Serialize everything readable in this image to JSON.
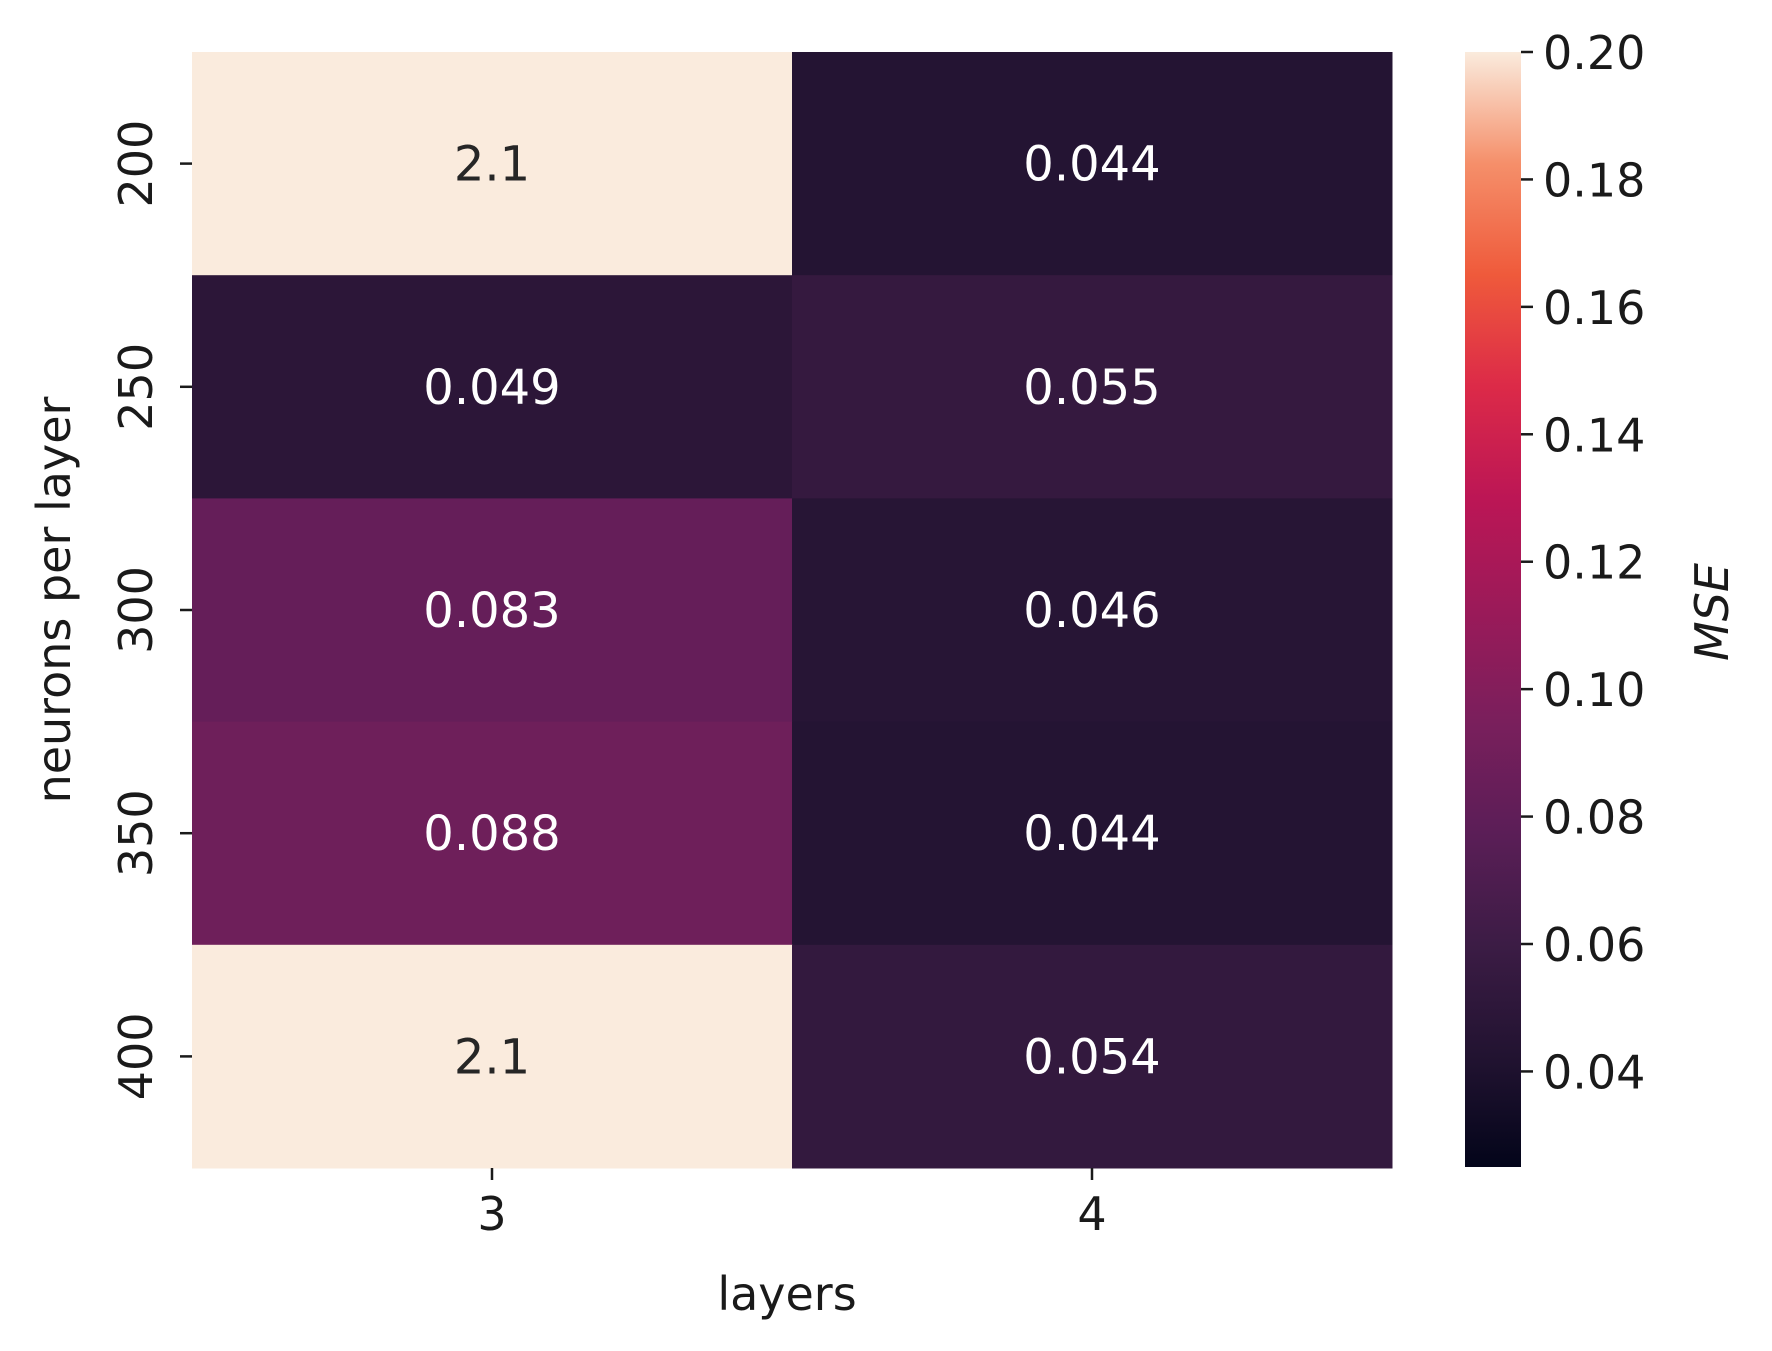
{
  "chart_data": {
    "type": "heatmap",
    "title": "",
    "xlabel": "layers",
    "ylabel": "neurons per layer",
    "x_categories": [
      "3",
      "4"
    ],
    "y_categories": [
      "200",
      "250",
      "300",
      "350",
      "400"
    ],
    "values": [
      [
        2.1,
        0.044
      ],
      [
        0.049,
        0.055
      ],
      [
        0.083,
        0.046
      ],
      [
        0.088,
        0.044
      ],
      [
        2.1,
        0.054
      ]
    ],
    "cell_labels": [
      [
        "2.1",
        "0.044"
      ],
      [
        "0.049",
        "0.055"
      ],
      [
        "0.083",
        "0.046"
      ],
      [
        "0.088",
        "0.044"
      ],
      [
        "2.1",
        "0.054"
      ]
    ],
    "colorbar": {
      "label": "MSE",
      "vmin": 0.025,
      "vmax": 0.2,
      "ticks": [
        "0.04",
        "0.06",
        "0.08",
        "0.10",
        "0.12",
        "0.14",
        "0.16",
        "0.18",
        "0.20"
      ],
      "colormap": "rocket"
    }
  }
}
